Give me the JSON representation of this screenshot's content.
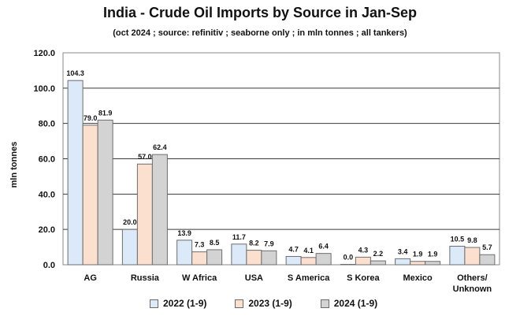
{
  "chart_data": {
    "type": "bar",
    "title": "India - Crude Oil Imports by Source in Jan-Sep",
    "subtitle": "(oct 2024 ; source: refinitiv ; seaborne only ; in mln tonnes ; all tankers)",
    "xlabel": "",
    "ylabel": "mln tonnes",
    "ylim": [
      0,
      120
    ],
    "yticks": [
      "0.0",
      "20.0",
      "40.0",
      "60.0",
      "80.0",
      "100.0",
      "120.0"
    ],
    "grid": true,
    "legend_position": "bottom",
    "categories": [
      "AG",
      "Russia",
      "W Africa",
      "USA",
      "S America",
      "S Korea",
      "Mexico",
      "Others/ Unknown"
    ],
    "series": [
      {
        "name": "2022 (1-9)",
        "color": "#dce9f8",
        "values": [
          104.3,
          20.0,
          13.9,
          11.7,
          4.7,
          0.0,
          3.4,
          10.5
        ],
        "labels": [
          "104.3",
          "20.0",
          "13.9",
          "11.7",
          "4.7",
          "0.0",
          "3.4",
          "10.5"
        ]
      },
      {
        "name": "2023 (1-9)",
        "color": "#fbe0d0",
        "values": [
          79.0,
          57.0,
          7.3,
          8.2,
          4.1,
          4.3,
          1.9,
          9.8
        ],
        "labels": [
          "79.0",
          "57.0",
          "7.3",
          "8.2",
          "4.1",
          "4.3",
          "1.9",
          "9.8"
        ]
      },
      {
        "name": "2024 (1-9)",
        "color": "#d3d3d3",
        "values": [
          81.9,
          62.4,
          8.5,
          7.9,
          6.4,
          2.2,
          1.9,
          5.7
        ],
        "labels": [
          "81.9",
          "62.4",
          "8.5",
          "7.9",
          "6.4",
          "2.2",
          "1.9",
          "5.7"
        ]
      }
    ]
  }
}
